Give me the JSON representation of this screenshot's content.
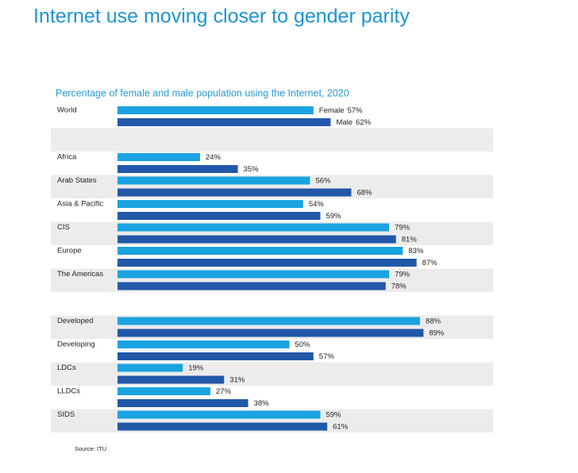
{
  "chart_data": {
    "type": "bar",
    "orientation": "horizontal",
    "title": "Internet use moving closer to gender parity",
    "subtitle": "Percentage of female and male population using the Internet, 2020",
    "source": "Source: ITU",
    "categories": [
      "World",
      null,
      "Africa",
      "Arab States",
      "Asia & Pacific",
      "CIS",
      "Europe",
      "The Americas",
      null,
      "Developed",
      "Developing",
      "LDCs",
      "LLDCs",
      "SIDS"
    ],
    "xlim": [
      0,
      100
    ],
    "series": [
      {
        "name": "Female",
        "color": "#1aa3e0",
        "values": [
          57,
          null,
          24,
          56,
          54,
          79,
          83,
          79,
          null,
          88,
          50,
          19,
          27,
          59
        ],
        "value_labels": [
          "57%",
          null,
          "24%",
          "56%",
          "54%",
          "79%",
          "83%",
          "79%",
          null,
          "88%",
          "50%",
          "19%",
          "27%",
          "59%"
        ]
      },
      {
        "name": "Male",
        "color": "#2258a8",
        "values": [
          62,
          null,
          35,
          68,
          59,
          81,
          87,
          78,
          null,
          89,
          57,
          31,
          38,
          61
        ],
        "value_labels": [
          "62%",
          null,
          "35%",
          "68%",
          "59%",
          "81%",
          "87%",
          "78%",
          null,
          "89%",
          "57%",
          "31%",
          "38%",
          "61%"
        ]
      }
    ],
    "row_shading": "#ececec"
  }
}
